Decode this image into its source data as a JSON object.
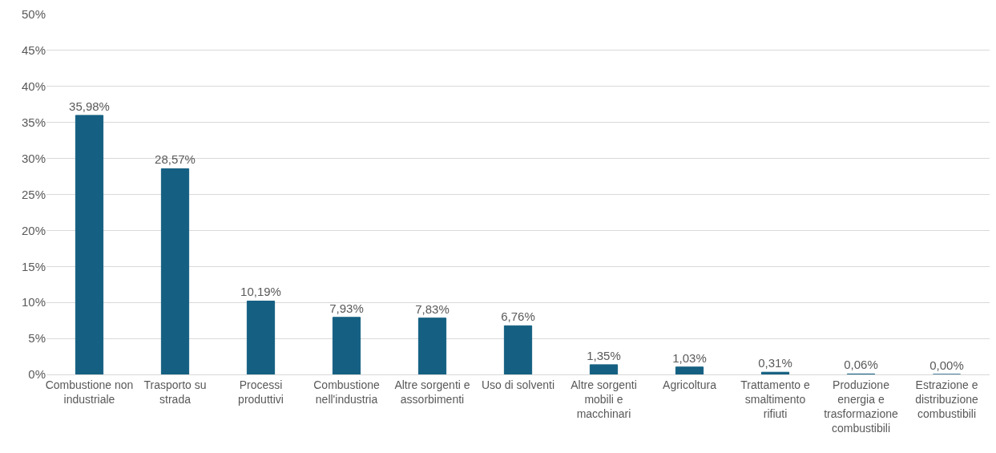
{
  "chart_data": {
    "type": "bar",
    "categories": [
      "Combustione non industriale",
      "Trasporto su strada",
      "Processi produttivi",
      "Combustione nell'industria",
      "Altre sorgenti e assorbimenti",
      "Uso di solventi",
      "Altre sorgenti mobili e macchinari",
      "Agricoltura",
      "Trattamento e smaltimento rifiuti",
      "Produzione energia e trasformazione combustibili",
      "Estrazione e distribuzione combustibili"
    ],
    "values": [
      35.98,
      28.57,
      10.19,
      7.93,
      7.83,
      6.76,
      1.35,
      1.03,
      0.31,
      0.06,
      0.0
    ],
    "value_labels": [
      "35,98%",
      "28,57%",
      "10,19%",
      "7,93%",
      "7,83%",
      "6,76%",
      "1,35%",
      "1,03%",
      "0,31%",
      "0,06%",
      "0,00%"
    ],
    "color": "#156082",
    "ylim": [
      0,
      50
    ],
    "yticks": [
      {
        "value": 0,
        "label": "0%"
      },
      {
        "value": 5,
        "label": "5%"
      },
      {
        "value": 10,
        "label": "10%"
      },
      {
        "value": 15,
        "label": "15%"
      },
      {
        "value": 20,
        "label": "20%"
      },
      {
        "value": 25,
        "label": "25%"
      },
      {
        "value": 30,
        "label": "30%"
      },
      {
        "value": 35,
        "label": "35%"
      },
      {
        "value": 40,
        "label": "40%"
      },
      {
        "value": 45,
        "label": "45%"
      },
      {
        "value": 50,
        "label": "50%"
      }
    ],
    "grid": "y"
  }
}
